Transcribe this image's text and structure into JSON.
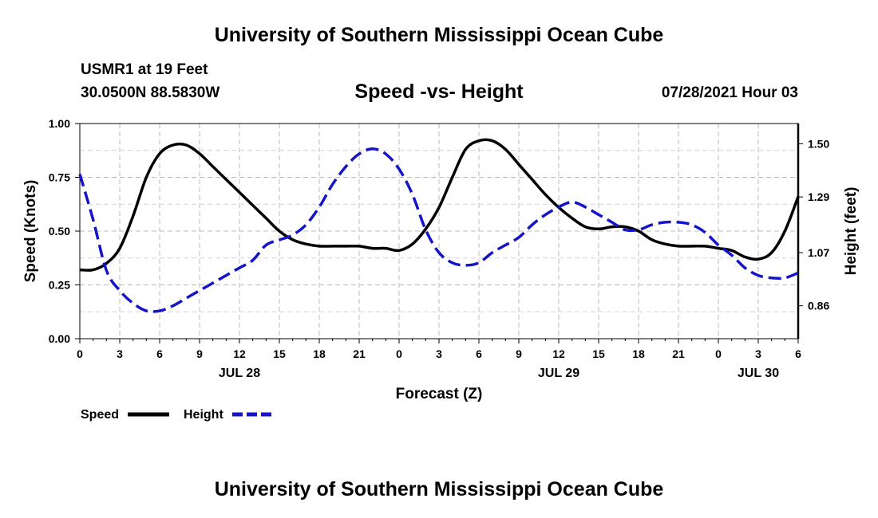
{
  "header": {
    "title": "University of Southern Mississippi Ocean Cube",
    "station": "USMR1 at 19 Feet",
    "coords": "30.0500N  88.5830W",
    "datetime": "07/28/2021 Hour 03"
  },
  "footer": {
    "title": "University of Southern Mississippi Ocean Cube"
  },
  "chart_data": {
    "type": "line",
    "title": "Speed -vs- Height",
    "xlabel": "Forecast (Z)",
    "ylabel": "Speed (Knots)",
    "y2label": "Height (feet)",
    "ylim": [
      0,
      1.0
    ],
    "y2lim": [
      0.73,
      1.58
    ],
    "grid": true,
    "x_ticks": [
      "0",
      "3",
      "6",
      "9",
      "12",
      "15",
      "18",
      "21",
      "0",
      "3",
      "6",
      "9",
      "12",
      "15",
      "18",
      "21",
      "0",
      "3",
      "6"
    ],
    "date_labels": [
      {
        "label": "JUL 28",
        "x_hour": 12
      },
      {
        "label": "JUL 29",
        "x_hour": 36
      },
      {
        "label": "JUL 30",
        "x_hour": 51
      }
    ],
    "y_ticks": [
      "0.00",
      "0.25",
      "0.50",
      "0.75",
      "1.00"
    ],
    "y_tick_values": [
      0,
      0.25,
      0.5,
      0.75,
      1.0
    ],
    "y2_ticks": [
      "0.86",
      "1.07",
      "1.29",
      "1.50"
    ],
    "y2_tick_values": [
      0.86,
      1.07,
      1.29,
      1.5
    ],
    "x_hours": [
      0,
      1,
      2,
      3,
      4,
      5,
      6,
      7,
      8,
      9,
      10,
      11,
      12,
      13,
      14,
      15,
      16,
      17,
      18,
      19,
      20,
      21,
      22,
      23,
      24,
      25,
      26,
      27,
      28,
      29,
      30,
      31,
      32,
      33,
      34,
      35,
      36,
      37,
      38,
      39,
      40,
      41,
      42,
      43,
      44,
      45,
      46,
      47,
      48,
      49,
      50,
      51,
      52,
      53,
      54
    ],
    "series": [
      {
        "name": "Speed",
        "label": "Speed",
        "axis": "left",
        "color": "#000000",
        "dash": "solid",
        "values": [
          0.32,
          0.32,
          0.35,
          0.42,
          0.57,
          0.75,
          0.86,
          0.9,
          0.9,
          0.86,
          0.8,
          0.74,
          0.68,
          0.62,
          0.56,
          0.5,
          0.46,
          0.44,
          0.43,
          0.43,
          0.43,
          0.43,
          0.42,
          0.42,
          0.41,
          0.44,
          0.51,
          0.61,
          0.75,
          0.88,
          0.92,
          0.92,
          0.88,
          0.81,
          0.74,
          0.67,
          0.61,
          0.56,
          0.52,
          0.51,
          0.52,
          0.52,
          0.5,
          0.46,
          0.44,
          0.43,
          0.43,
          0.43,
          0.42,
          0.41,
          0.38,
          0.37,
          0.4,
          0.5,
          0.66
        ]
      },
      {
        "name": "Height",
        "label": "Height",
        "axis": "right",
        "color": "#1414c8",
        "dash": "dashed",
        "values": [
          1.38,
          1.2,
          1.0,
          0.92,
          0.87,
          0.84,
          0.84,
          0.86,
          0.89,
          0.92,
          0.95,
          0.98,
          1.01,
          1.04,
          1.1,
          1.12,
          1.14,
          1.18,
          1.25,
          1.34,
          1.41,
          1.46,
          1.48,
          1.46,
          1.4,
          1.3,
          1.16,
          1.07,
          1.03,
          1.02,
          1.03,
          1.07,
          1.1,
          1.13,
          1.18,
          1.22,
          1.25,
          1.27,
          1.25,
          1.22,
          1.19,
          1.16,
          1.16,
          1.18,
          1.19,
          1.19,
          1.18,
          1.15,
          1.1,
          1.06,
          1.01,
          0.98,
          0.97,
          0.97,
          0.99
        ]
      }
    ]
  }
}
